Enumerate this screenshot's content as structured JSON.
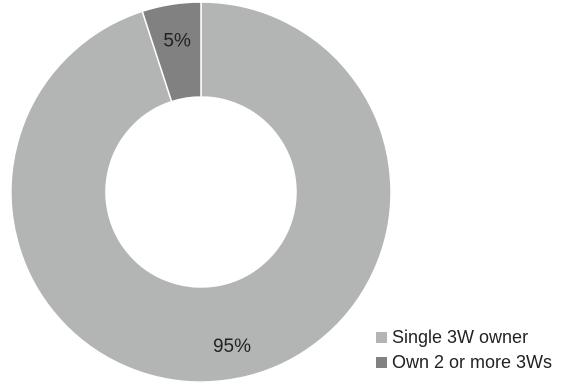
{
  "chart_data": {
    "type": "pie",
    "title": "",
    "categories": [
      "Single 3W owner",
      "Own 2 or more 3Ws"
    ],
    "values": [
      95,
      5
    ],
    "data_labels": [
      "95%",
      "5%"
    ],
    "colors": [
      "#b3b5b4",
      "#818181"
    ],
    "donut": true,
    "legend": "bottom-right",
    "legend_entries": [
      {
        "label": "Single 3W owner",
        "color": "#b3b5b4"
      },
      {
        "label": "Own 2 or more 3Ws",
        "color": "#818181"
      }
    ]
  }
}
